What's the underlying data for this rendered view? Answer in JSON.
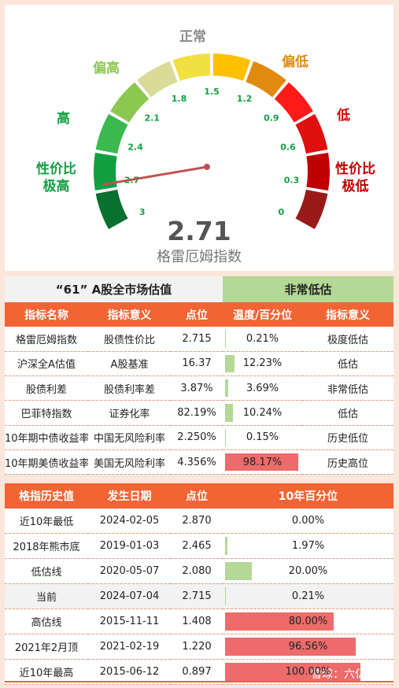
{
  "gauge": {
    "value": "2.71",
    "name": "格雷厄姆指数",
    "zone_labels": [
      "正常",
      "偏低",
      "低",
      "性价比\n极低",
      "偏高",
      "高",
      "性价比\n极高"
    ],
    "scale": [
      "3",
      "2.7",
      "2.4",
      "2.1",
      "1.8",
      "1.5",
      "1.2",
      "0.9",
      "0.6",
      "0.3",
      "0"
    ],
    "colors": {
      "normal": "#8a8a8a",
      "low_mild": "#e08a10",
      "low": "#d40000",
      "very_low": "#c00000",
      "high_mild": "#8cc850",
      "high": "#10a040",
      "very_high": "#10a040"
    }
  },
  "valuation": {
    "title": "“61” A股全市场估值",
    "verdict": "非常低估",
    "headers": [
      "指标名称",
      "指标意义",
      "点位",
      "温度/百分位",
      "指标意义"
    ],
    "rows": [
      {
        "name": "格雷厄姆指数",
        "meaning": "股债性价比",
        "point": "2.715",
        "pct_label": "0.21%",
        "pct": 0.21,
        "level": "极度低估"
      },
      {
        "name": "沪深全A估值",
        "meaning": "A股基准",
        "point": "16.37",
        "pct_label": "12.23%",
        "pct": 12.23,
        "level": "低估"
      },
      {
        "name": "股债利差",
        "meaning": "股债利率差",
        "point": "3.87%",
        "pct_label": "3.69%",
        "pct": 3.69,
        "level": "非常低估"
      },
      {
        "name": "巴菲特指数",
        "meaning": "证券化率",
        "point": "82.19%",
        "pct_label": "10.24%",
        "pct": 10.24,
        "level": "低估"
      },
      {
        "name": "10年期中债收益率",
        "meaning": "中国无风险利率",
        "point": "2.250%",
        "pct_label": "0.15%",
        "pct": 0.15,
        "level": "历史低位"
      },
      {
        "name": "10年期美债收益率",
        "meaning": "美国无风险利率",
        "point": "4.356%",
        "pct_label": "98.17%",
        "pct": 98.17,
        "level": "历史高位"
      }
    ]
  },
  "history": {
    "headers": [
      "格指历史值",
      "发生日期",
      "点位",
      "10年百分位"
    ],
    "rows": [
      {
        "name": "近10年最低",
        "date": "2024-02-05",
        "point": "2.870",
        "pct_label": "0.00%",
        "pct": 0.0
      },
      {
        "name": "2018年熊市底",
        "date": "2019-01-03",
        "point": "2.465",
        "pct_label": "1.97%",
        "pct": 1.97
      },
      {
        "name": "低估线",
        "date": "2020-05-07",
        "point": "2.080",
        "pct_label": "20.00%",
        "pct": 20.0
      },
      {
        "name": "当前",
        "date": "2024-07-04",
        "point": "2.715",
        "pct_label": "0.21%",
        "pct": 0.21
      },
      {
        "name": "高估线",
        "date": "2015-11-11",
        "point": "1.408",
        "pct_label": "80.00%",
        "pct": 80.0
      },
      {
        "name": "2021年2月顶",
        "date": "2021-02-19",
        "point": "1.220",
        "pct_label": "96.56%",
        "pct": 96.56
      },
      {
        "name": "近10年最高",
        "date": "2015-06-12",
        "point": "0.897",
        "pct_label": "100.00%",
        "pct": 100.0
      }
    ]
  },
  "bar_colors": {
    "green": "#b4d896",
    "red": "#ee6b6b"
  },
  "watermark": "雪球：六亿居士"
}
